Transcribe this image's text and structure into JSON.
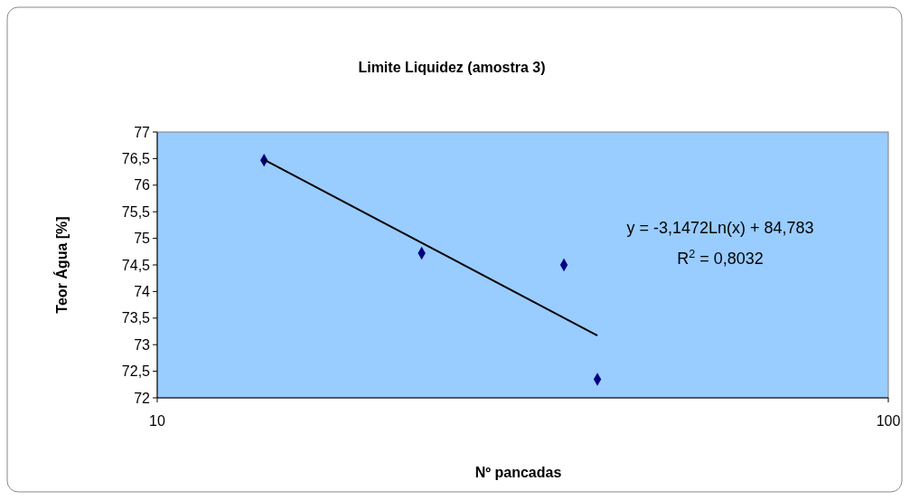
{
  "chart_data": {
    "type": "scatter",
    "title": "Limite Liquidez (amostra 3)",
    "xlabel": "Nº pancadas",
    "ylabel": "Teor Água [%]",
    "log": "x",
    "xlim": [
      10,
      100
    ],
    "xticks": [
      10,
      100
    ],
    "ylim": [
      72,
      77
    ],
    "yticks": [
      72,
      {
        "value": 72.5,
        "label": "72,5"
      },
      73,
      {
        "value": 73.5,
        "label": "73,5"
      },
      74,
      {
        "value": 74.5,
        "label": "74,5"
      },
      75,
      {
        "value": 75.5,
        "label": "75,5"
      },
      76,
      {
        "value": 76.5,
        "label": "76,5"
      },
      77
    ],
    "marker": "diamond",
    "grid": false,
    "series": [
      {
        "color": "#000080",
        "x": [
          14,
          23,
          36,
          40
        ],
        "values": [
          76.47,
          74.72,
          74.5,
          72.35
        ]
      },
      {
        "type": "line",
        "color": "#000000",
        "marker": "none",
        "x": [
          14,
          40
        ],
        "values": [
          76.48,
          73.17
        ]
      }
    ],
    "annotations": [
      "y = -3,1472Ln(x) + 84,783",
      "R$^{2}$ = 0,8032"
    ]
  }
}
